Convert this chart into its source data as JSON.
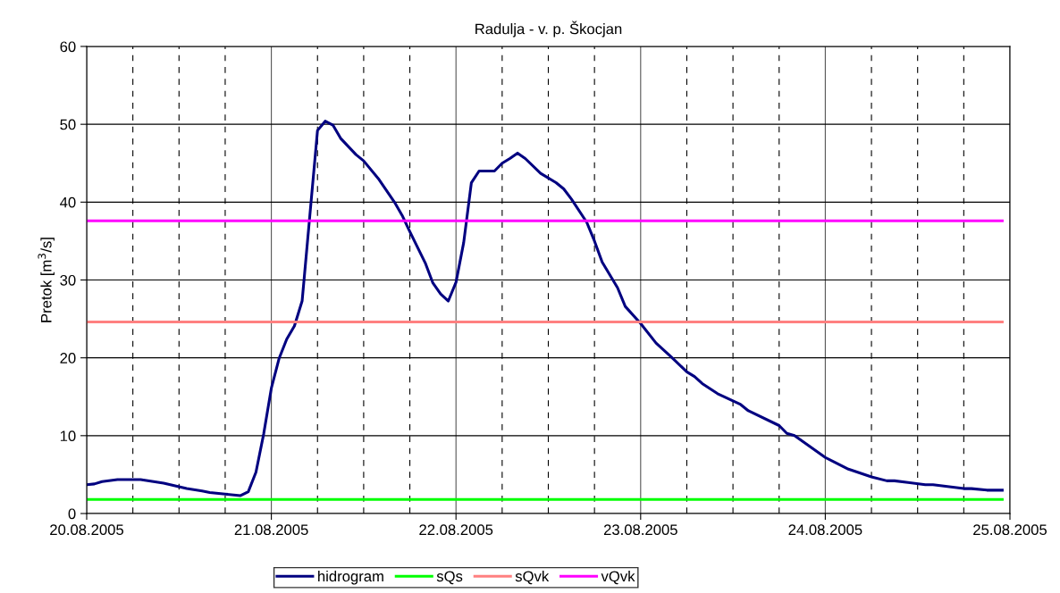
{
  "chart_data": {
    "type": "line",
    "title": "Radulja - v. p. Škocjan",
    "ylabel": "Pretok [m$^{3}$/s]",
    "xlim": [
      "2005-08-20T00:00",
      "2005-08-25T00:00"
    ],
    "xticks": [
      {
        "value": "2005-08-20T00:00",
        "label": "20.08.2005"
      },
      {
        "value": "2005-08-20T06:00",
        "label": null
      },
      {
        "value": "2005-08-20T12:00",
        "label": null
      },
      {
        "value": "2005-08-20T18:00",
        "label": null
      },
      {
        "value": "2005-08-21T00:00",
        "label": "21.08.2005"
      },
      {
        "value": "2005-08-21T06:00",
        "label": null
      },
      {
        "value": "2005-08-21T12:00",
        "label": null
      },
      {
        "value": "2005-08-21T18:00",
        "label": null
      },
      {
        "value": "2005-08-22T00:00",
        "label": "22.08.2005"
      },
      {
        "value": "2005-08-22T06:00",
        "label": null
      },
      {
        "value": "2005-08-22T12:00",
        "label": null
      },
      {
        "value": "2005-08-22T18:00",
        "label": null
      },
      {
        "value": "2005-08-23T00:00",
        "label": "23.08.2005"
      },
      {
        "value": "2005-08-23T06:00",
        "label": null
      },
      {
        "value": "2005-08-23T12:00",
        "label": null
      },
      {
        "value": "2005-08-23T18:00",
        "label": null
      },
      {
        "value": "2005-08-24T00:00",
        "label": "24.08.2005"
      },
      {
        "value": "2005-08-24T06:00",
        "label": null
      },
      {
        "value": "2005-08-24T12:00",
        "label": null
      },
      {
        "value": "2005-08-24T18:00",
        "label": null
      },
      {
        "value": "2005-08-25T00:00",
        "label": "25.08.2005"
      }
    ],
    "ylim": [
      0,
      60
    ],
    "yticks": [
      0,
      10,
      20,
      30,
      40,
      50,
      60
    ],
    "grid": true,
    "legend": "bottom",
    "marker": "none",
    "line_style": "solid",
    "series": [
      {
        "name": "hidrogram",
        "color": "#000080",
        "x": [
          "2005-08-20T00:00",
          "2005-08-20T01:00",
          "2005-08-20T02:00",
          "2005-08-20T04:00",
          "2005-08-20T07:00",
          "2005-08-20T10:00",
          "2005-08-20T13:00",
          "2005-08-20T15:00",
          "2005-08-20T16:00",
          "2005-08-20T18:00",
          "2005-08-20T20:00",
          "2005-08-20T21:00",
          "2005-08-20T22:00",
          "2005-08-20T23:00",
          "2005-08-21T00:00",
          "2005-08-21T01:00",
          "2005-08-21T02:00",
          "2005-08-21T03:00",
          "2005-08-21T04:00",
          "2005-08-21T06:00",
          "2005-08-21T07:00",
          "2005-08-21T08:00",
          "2005-08-21T09:00",
          "2005-08-21T11:00",
          "2005-08-21T12:00",
          "2005-08-21T14:00",
          "2005-08-21T16:00",
          "2005-08-21T17:00",
          "2005-08-21T18:00",
          "2005-08-21T20:00",
          "2005-08-21T21:00",
          "2005-08-21T22:00",
          "2005-08-21T23:00",
          "2005-08-22T00:00",
          "2005-08-22T01:00",
          "2005-08-22T02:00",
          "2005-08-22T03:00",
          "2005-08-22T05:00",
          "2005-08-22T06:00",
          "2005-08-22T07:00",
          "2005-08-22T08:00",
          "2005-08-22T09:00",
          "2005-08-22T11:00",
          "2005-08-22T13:00",
          "2005-08-22T14:00",
          "2005-08-22T15:00",
          "2005-08-22T17:00",
          "2005-08-22T18:00",
          "2005-08-22T19:00",
          "2005-08-22T21:00",
          "2005-08-22T22:00",
          "2005-08-23T00:00",
          "2005-08-23T02:00",
          "2005-08-23T04:00",
          "2005-08-23T06:00",
          "2005-08-23T07:00",
          "2005-08-23T08:00",
          "2005-08-23T10:00",
          "2005-08-23T13:00",
          "2005-08-23T14:00",
          "2005-08-23T18:00",
          "2005-08-23T19:00",
          "2005-08-23T20:00",
          "2005-08-24T00:00",
          "2005-08-24T01:00",
          "2005-08-24T03:00",
          "2005-08-24T06:00",
          "2005-08-24T08:00",
          "2005-08-24T09:00",
          "2005-08-24T13:00",
          "2005-08-24T14:00",
          "2005-08-24T18:00",
          "2005-08-24T19:00",
          "2005-08-24T21:00",
          "2005-08-24T23:00"
        ],
        "values": [
          3.7,
          3.8,
          4.1,
          4.35,
          4.35,
          3.9,
          3.2,
          2.9,
          2.7,
          2.5,
          2.3,
          2.8,
          5.3,
          10.2,
          16.1,
          19.9,
          22.4,
          24.1,
          27.3,
          49.2,
          50.4,
          49.9,
          48.2,
          46.1,
          45.3,
          42.9,
          40.0,
          38.3,
          36.2,
          32.2,
          29.6,
          28.2,
          27.3,
          29.7,
          34.8,
          42.5,
          44.0,
          44.0,
          45.0,
          45.6,
          46.3,
          45.6,
          43.7,
          42.5,
          41.7,
          40.4,
          37.4,
          35.0,
          32.3,
          29.0,
          26.6,
          24.4,
          21.9,
          20.1,
          18.2,
          17.6,
          16.7,
          15.4,
          14.0,
          13.2,
          11.3,
          10.3,
          10.0,
          7.2,
          6.7,
          5.7,
          4.7,
          4.2,
          4.2,
          3.7,
          3.7,
          3.2,
          3.2,
          3.0,
          3.0
        ]
      },
      {
        "name": "sQs",
        "color": "#00ff00",
        "x": [
          "2005-08-20T00:00",
          "2005-08-24T23:00"
        ],
        "values": [
          1.8,
          1.8
        ]
      },
      {
        "name": "sQvk",
        "color": "#ff8080",
        "x": [
          "2005-08-20T00:00",
          "2005-08-24T23:00"
        ],
        "values": [
          24.6,
          24.6
        ]
      },
      {
        "name": "vQvk",
        "color": "#ff00ff",
        "x": [
          "2005-08-20T00:00",
          "2005-08-24T23:00"
        ],
        "values": [
          37.6,
          37.6
        ]
      }
    ]
  }
}
